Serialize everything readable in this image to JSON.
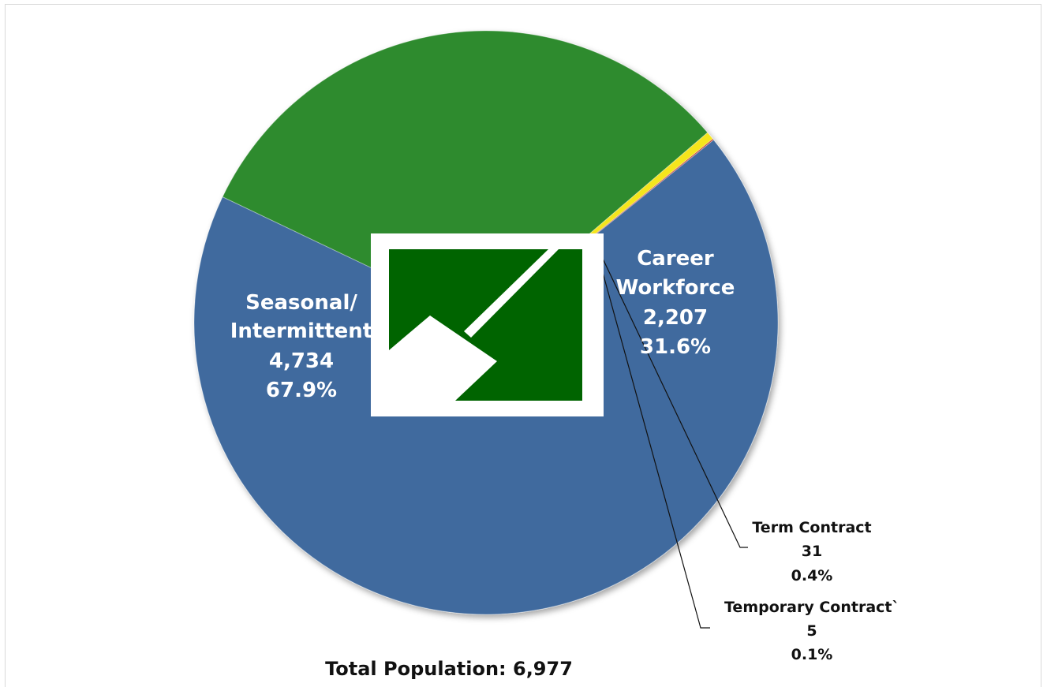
{
  "chart_data": {
    "type": "pie",
    "title": "",
    "total_label": "Total Population: 6,977",
    "slices": [
      {
        "name": "Career Workforce",
        "label_lines": [
          "Career",
          "Workforce"
        ],
        "value": 2207,
        "value_label": "2,207",
        "percent_label": "31.6%",
        "color": "#2e8b2e"
      },
      {
        "name": "Term Contract",
        "label_lines": [
          "Term Contract"
        ],
        "value": 31,
        "value_label": "31",
        "percent_label": "0.4%",
        "color": "#f5e51a"
      },
      {
        "name": "Temporary Contract",
        "label_lines": [
          "Temporary Contract`"
        ],
        "value": 5,
        "value_label": "5",
        "percent_label": "0.1%",
        "color": "#c0392b"
      },
      {
        "name": "Seasonal/Intermittent",
        "label_lines": [
          "Seasonal/",
          "Intermittent"
        ],
        "value": 4734,
        "value_label": "4,734",
        "percent_label": "67.9%",
        "color": "#3f6a9e"
      }
    ],
    "legend": "none"
  },
  "logo": {
    "description_icon": "agency-logo-icon",
    "colors": {
      "background": "#ffffff",
      "fill": "#006400"
    }
  }
}
